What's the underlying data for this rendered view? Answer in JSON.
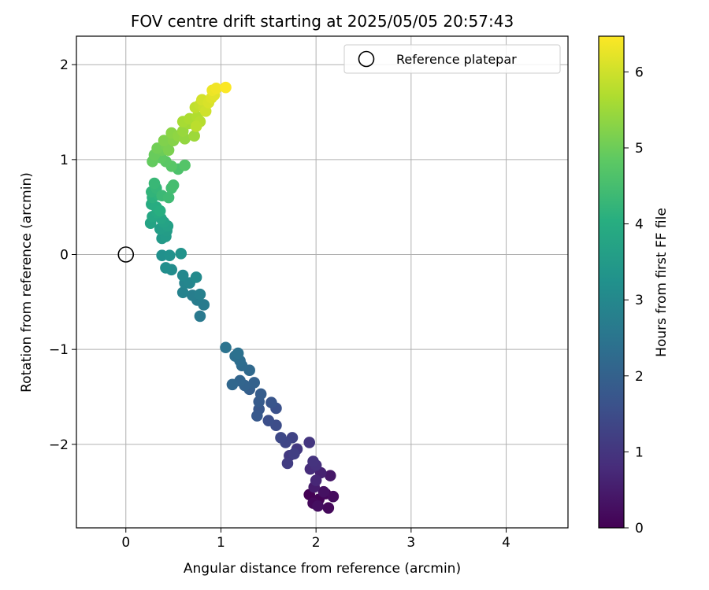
{
  "chart_data": {
    "type": "scatter",
    "title": "FOV centre drift starting at 2025/05/05 20:57:43",
    "xlabel": "Angular distance from reference (arcmin)",
    "ylabel": "Rotation from reference (arcmin)",
    "xlim": [
      -0.52,
      4.65
    ],
    "ylim": [
      -2.88,
      2.3
    ],
    "xticks": [
      0,
      1,
      2,
      3,
      4
    ],
    "xtick_labels": [
      "0",
      "1",
      "2",
      "3",
      "4"
    ],
    "yticks": [
      -2,
      -1,
      0,
      1,
      2
    ],
    "ytick_labels": [
      "−2",
      "−1",
      "0",
      "1",
      "2"
    ],
    "grid": true,
    "legend": {
      "placement": "top-right",
      "entries": [
        "Reference platepar"
      ]
    },
    "reference_point": {
      "name": "Reference platepar",
      "x": 0,
      "y": 0,
      "marker": "open-circle"
    },
    "colorbar": {
      "label": "Hours from first FF file",
      "colormap": "viridis",
      "range": [
        0,
        6.47
      ],
      "ticks": [
        0,
        1,
        2,
        3,
        4,
        5,
        6
      ],
      "tick_labels": [
        "0",
        "1",
        "2",
        "3",
        "4",
        "5",
        "6"
      ]
    },
    "points": [
      {
        "x": 1.93,
        "y": -2.53,
        "h": 0.0
      },
      {
        "x": 2.03,
        "y": -2.58,
        "h": 0.05
      },
      {
        "x": 2.1,
        "y": -2.52,
        "h": 0.1
      },
      {
        "x": 1.97,
        "y": -2.62,
        "h": 0.12
      },
      {
        "x": 2.13,
        "y": -2.67,
        "h": 0.15
      },
      {
        "x": 2.18,
        "y": -2.55,
        "h": 0.2
      },
      {
        "x": 2.02,
        "y": -2.65,
        "h": 0.25
      },
      {
        "x": 2.08,
        "y": -2.5,
        "h": 0.3
      },
      {
        "x": 2.15,
        "y": -2.33,
        "h": 0.4
      },
      {
        "x": 1.98,
        "y": -2.45,
        "h": 0.5
      },
      {
        "x": 2.05,
        "y": -2.3,
        "h": 0.6
      },
      {
        "x": 2.0,
        "y": -2.38,
        "h": 0.7
      },
      {
        "x": 1.94,
        "y": -2.26,
        "h": 0.8
      },
      {
        "x": 2.0,
        "y": -2.22,
        "h": 0.9
      },
      {
        "x": 1.97,
        "y": -2.18,
        "h": 0.95
      },
      {
        "x": 1.93,
        "y": -1.98,
        "h": 1.0
      },
      {
        "x": 1.8,
        "y": -2.05,
        "h": 1.05
      },
      {
        "x": 1.72,
        "y": -2.12,
        "h": 1.1
      },
      {
        "x": 1.7,
        "y": -2.2,
        "h": 1.15
      },
      {
        "x": 1.77,
        "y": -2.1,
        "h": 1.2
      },
      {
        "x": 1.75,
        "y": -1.93,
        "h": 1.3
      },
      {
        "x": 1.68,
        "y": -1.98,
        "h": 1.35
      },
      {
        "x": 1.63,
        "y": -1.93,
        "h": 1.4
      },
      {
        "x": 1.58,
        "y": -1.8,
        "h": 1.5
      },
      {
        "x": 1.5,
        "y": -1.75,
        "h": 1.55
      },
      {
        "x": 1.58,
        "y": -1.62,
        "h": 1.6
      },
      {
        "x": 1.53,
        "y": -1.56,
        "h": 1.7
      },
      {
        "x": 1.4,
        "y": -1.63,
        "h": 1.75
      },
      {
        "x": 1.38,
        "y": -1.7,
        "h": 1.8
      },
      {
        "x": 1.4,
        "y": -1.55,
        "h": 1.85
      },
      {
        "x": 1.42,
        "y": -1.47,
        "h": 1.9
      },
      {
        "x": 1.3,
        "y": -1.42,
        "h": 1.95
      },
      {
        "x": 1.35,
        "y": -1.35,
        "h": 2.0
      },
      {
        "x": 1.25,
        "y": -1.38,
        "h": 2.05
      },
      {
        "x": 1.2,
        "y": -1.33,
        "h": 2.1
      },
      {
        "x": 1.12,
        "y": -1.37,
        "h": 2.15
      },
      {
        "x": 1.3,
        "y": -1.22,
        "h": 2.2
      },
      {
        "x": 1.22,
        "y": -1.17,
        "h": 2.25
      },
      {
        "x": 1.2,
        "y": -1.12,
        "h": 2.3
      },
      {
        "x": 1.15,
        "y": -1.07,
        "h": 2.35
      },
      {
        "x": 1.18,
        "y": -1.04,
        "h": 2.4
      },
      {
        "x": 1.05,
        "y": -0.98,
        "h": 2.45
      },
      {
        "x": 0.78,
        "y": -0.65,
        "h": 2.6
      },
      {
        "x": 0.82,
        "y": -0.53,
        "h": 2.65
      },
      {
        "x": 0.75,
        "y": -0.48,
        "h": 2.7
      },
      {
        "x": 0.7,
        "y": -0.43,
        "h": 2.75
      },
      {
        "x": 0.78,
        "y": -0.42,
        "h": 2.8
      },
      {
        "x": 0.6,
        "y": -0.4,
        "h": 2.85
      },
      {
        "x": 0.62,
        "y": -0.3,
        "h": 2.9
      },
      {
        "x": 0.67,
        "y": -0.3,
        "h": 2.95
      },
      {
        "x": 0.6,
        "y": -0.22,
        "h": 3.0
      },
      {
        "x": 0.74,
        "y": -0.24,
        "h": 3.05
      },
      {
        "x": 0.48,
        "y": -0.16,
        "h": 3.1
      },
      {
        "x": 0.42,
        "y": -0.14,
        "h": 3.15
      },
      {
        "x": 0.38,
        "y": -0.01,
        "h": 3.2
      },
      {
        "x": 0.46,
        "y": -0.01,
        "h": 3.25
      },
      {
        "x": 0.58,
        "y": 0.01,
        "h": 3.3
      },
      {
        "x": 0.38,
        "y": 0.17,
        "h": 3.45
      },
      {
        "x": 0.42,
        "y": 0.19,
        "h": 3.5
      },
      {
        "x": 0.43,
        "y": 0.25,
        "h": 3.55
      },
      {
        "x": 0.36,
        "y": 0.27,
        "h": 3.6
      },
      {
        "x": 0.44,
        "y": 0.3,
        "h": 3.65
      },
      {
        "x": 0.4,
        "y": 0.34,
        "h": 3.7
      },
      {
        "x": 0.26,
        "y": 0.33,
        "h": 3.75
      },
      {
        "x": 0.37,
        "y": 0.38,
        "h": 3.8
      },
      {
        "x": 0.28,
        "y": 0.4,
        "h": 3.85
      },
      {
        "x": 0.33,
        "y": 0.44,
        "h": 3.9
      },
      {
        "x": 0.27,
        "y": 0.53,
        "h": 3.95
      },
      {
        "x": 0.32,
        "y": 0.5,
        "h": 4.0
      },
      {
        "x": 0.36,
        "y": 0.46,
        "h": 4.05
      },
      {
        "x": 0.28,
        "y": 0.6,
        "h": 4.1
      },
      {
        "x": 0.34,
        "y": 0.63,
        "h": 4.15
      },
      {
        "x": 0.27,
        "y": 0.66,
        "h": 4.2
      },
      {
        "x": 0.32,
        "y": 0.7,
        "h": 4.25
      },
      {
        "x": 0.3,
        "y": 0.75,
        "h": 4.3
      },
      {
        "x": 0.38,
        "y": 0.62,
        "h": 4.35
      },
      {
        "x": 0.45,
        "y": 0.6,
        "h": 4.4
      },
      {
        "x": 0.48,
        "y": 0.7,
        "h": 4.45
      },
      {
        "x": 0.5,
        "y": 0.73,
        "h": 4.5
      },
      {
        "x": 0.55,
        "y": 0.9,
        "h": 4.6
      },
      {
        "x": 0.62,
        "y": 0.94,
        "h": 4.7
      },
      {
        "x": 0.48,
        "y": 0.93,
        "h": 4.75
      },
      {
        "x": 0.42,
        "y": 0.98,
        "h": 4.8
      },
      {
        "x": 0.37,
        "y": 1.02,
        "h": 4.85
      },
      {
        "x": 0.28,
        "y": 0.98,
        "h": 4.9
      },
      {
        "x": 0.3,
        "y": 1.05,
        "h": 4.95
      },
      {
        "x": 0.38,
        "y": 1.1,
        "h": 5.0
      },
      {
        "x": 0.33,
        "y": 1.12,
        "h": 5.05
      },
      {
        "x": 0.42,
        "y": 1.15,
        "h": 5.1
      },
      {
        "x": 0.45,
        "y": 1.1,
        "h": 5.15
      },
      {
        "x": 0.4,
        "y": 1.2,
        "h": 5.2
      },
      {
        "x": 0.5,
        "y": 1.2,
        "h": 5.25
      },
      {
        "x": 0.48,
        "y": 1.28,
        "h": 5.3
      },
      {
        "x": 0.55,
        "y": 1.25,
        "h": 5.35
      },
      {
        "x": 0.62,
        "y": 1.22,
        "h": 5.4
      },
      {
        "x": 0.6,
        "y": 1.3,
        "h": 5.45
      },
      {
        "x": 0.72,
        "y": 1.25,
        "h": 5.5
      },
      {
        "x": 0.66,
        "y": 1.38,
        "h": 5.55
      },
      {
        "x": 0.6,
        "y": 1.4,
        "h": 5.6
      },
      {
        "x": 0.67,
        "y": 1.43,
        "h": 5.65
      },
      {
        "x": 0.75,
        "y": 1.45,
        "h": 5.7
      },
      {
        "x": 0.78,
        "y": 1.4,
        "h": 5.75
      },
      {
        "x": 0.74,
        "y": 1.35,
        "h": 5.8
      },
      {
        "x": 0.73,
        "y": 1.55,
        "h": 5.85
      },
      {
        "x": 0.78,
        "y": 1.58,
        "h": 5.9
      },
      {
        "x": 0.82,
        "y": 1.55,
        "h": 5.95
      },
      {
        "x": 0.84,
        "y": 1.51,
        "h": 6.0
      },
      {
        "x": 0.8,
        "y": 1.63,
        "h": 6.05
      },
      {
        "x": 0.87,
        "y": 1.6,
        "h": 6.1
      },
      {
        "x": 0.9,
        "y": 1.65,
        "h": 6.15
      },
      {
        "x": 0.93,
        "y": 1.68,
        "h": 6.2
      },
      {
        "x": 0.91,
        "y": 1.73,
        "h": 6.3
      },
      {
        "x": 0.95,
        "y": 1.75,
        "h": 6.35
      },
      {
        "x": 1.05,
        "y": 1.76,
        "h": 6.45
      }
    ]
  }
}
